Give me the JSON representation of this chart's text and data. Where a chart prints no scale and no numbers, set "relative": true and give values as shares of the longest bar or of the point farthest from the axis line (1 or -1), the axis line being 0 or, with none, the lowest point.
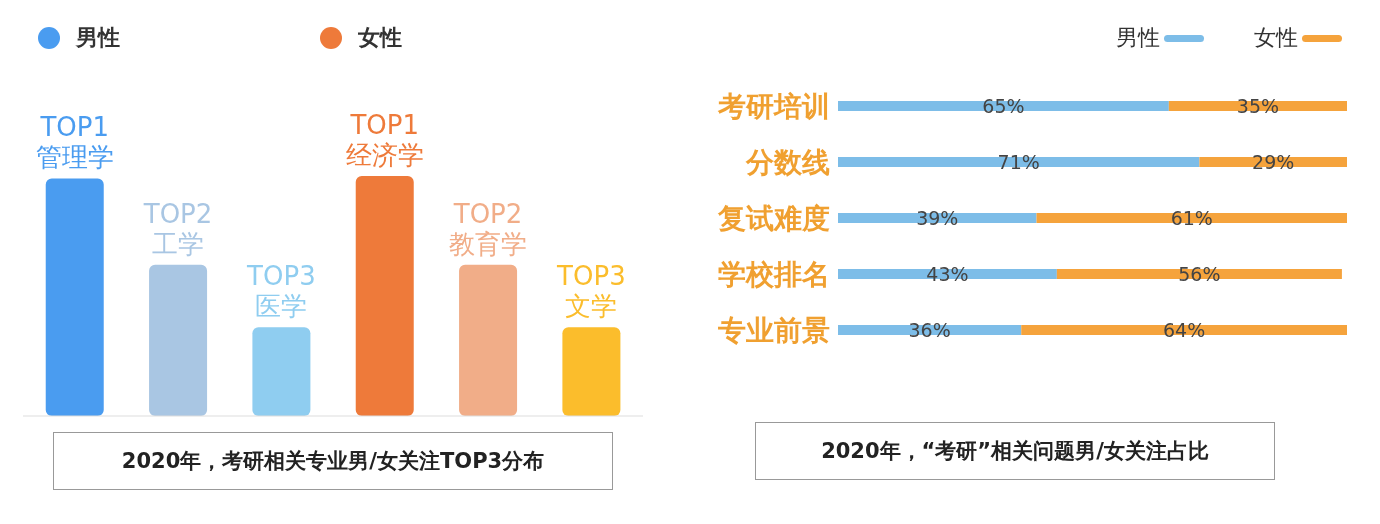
{
  "chart_data": [
    {
      "type": "bar",
      "title": "2020年，考研相关专业男/女关注TOP3分布",
      "relative": true,
      "stacked": true,
      "legend": "top left",
      "categories": [
        "TOP1 管理学",
        "TOP2 工学",
        "TOP3 医学",
        "TOP1 经济学",
        "TOP2 教育学",
        "TOP3 文学"
      ],
      "series": [
        {
          "name": "男性",
          "color": "#4a9cf0",
          "colors": [
            "#4a9cf0",
            "#a9c6e3",
            "#8fcdf0",
            null,
            null,
            null
          ],
          "values": [
            0.99,
            0.63,
            0.37,
            null,
            null,
            null
          ]
        },
        {
          "name": "女性",
          "color": "#ee7a3a",
          "colors": [
            null,
            null,
            null,
            "#ee7a3a",
            "#f1ad88",
            "#fbbd2c"
          ],
          "values": [
            null,
            null,
            null,
            1,
            0.63,
            0.37
          ]
        }
      ]
    },
    {
      "type": "bar",
      "title": "2020年，“考研”相关问题男/女关注占比",
      "orientation": "horizontal",
      "stacked": true,
      "legend": "top right",
      "categories": [
        "考研培训",
        "分数线",
        "复试难度",
        "学校排名",
        "专业前景"
      ],
      "series": [
        {
          "name": "男性",
          "color": "#7dbde8",
          "values": [
            65,
            71,
            39,
            43,
            36
          ],
          "value_labels": [
            "65%",
            "71%",
            "39%",
            "43%",
            "36%"
          ]
        },
        {
          "name": "女性",
          "color": "#f5a33c",
          "values": [
            35,
            29,
            61,
            56,
            64
          ],
          "value_labels": [
            "35%",
            "29%",
            "61%",
            "56%",
            "64%"
          ]
        }
      ]
    }
  ]
}
